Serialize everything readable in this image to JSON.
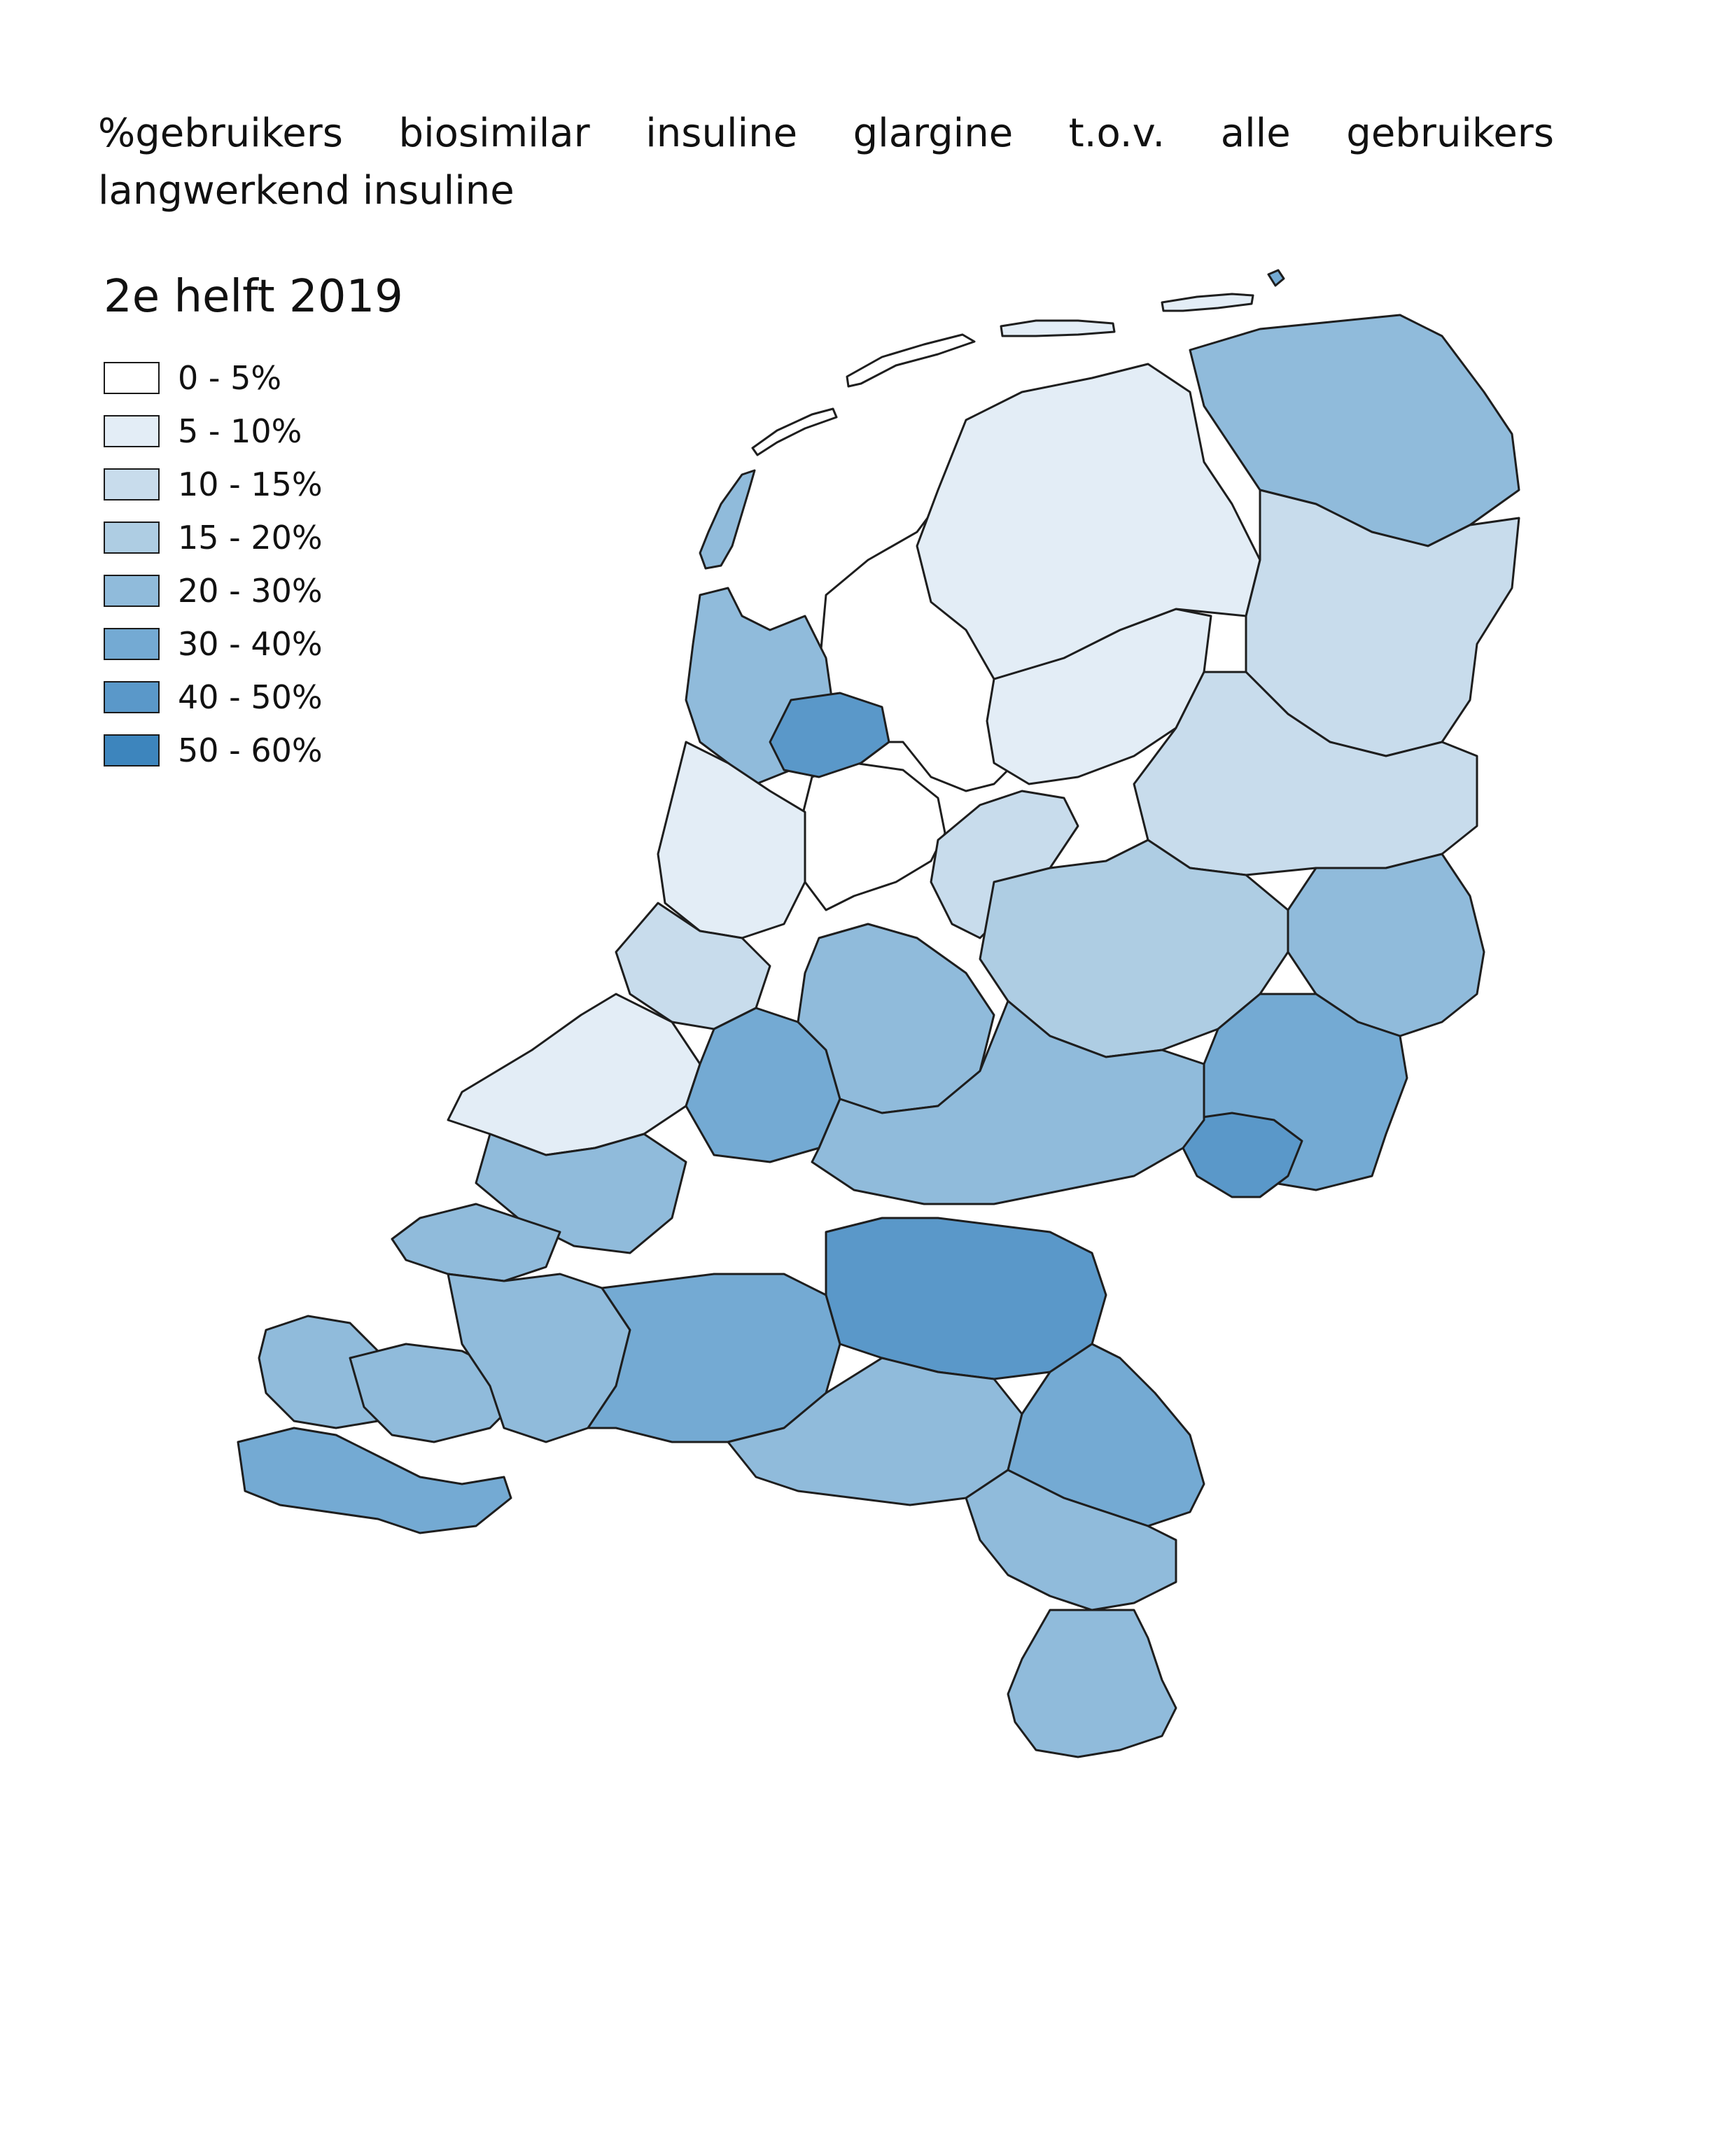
{
  "title": "%gebruikers biosimilar insuline glargine t.o.v. alle gebruikers langwerkend insuline",
  "subtitle": "2e helft 2019",
  "colors": {
    "c0": "#ffffff",
    "c1": "#e3edf6",
    "c2": "#c8dcec",
    "c3": "#aecde3",
    "c4": "#90bbdb",
    "c5": "#74aad3",
    "c6": "#5a98c9",
    "c7": "#3d85bd"
  },
  "legend": [
    {
      "label": "0 - 5%",
      "color": "#ffffff"
    },
    {
      "label": "5 - 10%",
      "color": "#e3edf6"
    },
    {
      "label": "10 - 15%",
      "color": "#c8dcec"
    },
    {
      "label": "15 - 20%",
      "color": "#aecde3"
    },
    {
      "label": "20 - 30%",
      "color": "#90bbdb"
    },
    {
      "label": "30 - 40%",
      "color": "#74aad3"
    },
    {
      "label": "40 - 50%",
      "color": "#5a98c9"
    },
    {
      "label": "50 - 60%",
      "color": "#3d85bd"
    }
  ]
}
